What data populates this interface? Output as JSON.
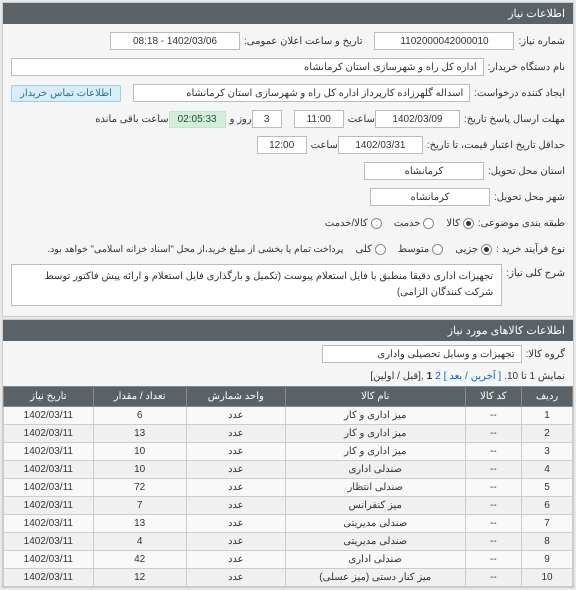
{
  "panel1": {
    "title": "اطلاعات نیاز",
    "need_no_lbl": "شماره نیاز:",
    "need_no": "1102000042000010",
    "pub_time_lbl": "تاریخ و ساعت اعلان عمومی:",
    "pub_time": "1402/03/06 - 08:18",
    "buyer_org_lbl": "نام دستگاه خریدار:",
    "buyer_org": "اداره کل راه و شهرسازی استان کرمانشاه",
    "requester_lbl": "ایجاد کننده درخواست:",
    "requester": "اسداله گلهرزاده کارپرداز اداره کل راه و شهرسازی استان کرمانشاه",
    "contact_btn": "اطلاعات تماس خریدار",
    "deadline_lbl": "مهلت ارسال پاسخ تاریخ:",
    "deadline_date": "1402/03/09",
    "time_lbl": "ساعت",
    "deadline_time": "11:00",
    "days_lbl": "روز و",
    "days": "3",
    "countdown": "02:05:33",
    "remain_lbl": "ساعت باقی مانده",
    "credit_lbl": "حداقل تاریخ اعتبار قیمت، تا تاریخ:",
    "credit_date": "1402/03/31",
    "credit_time": "12:00",
    "province_lbl": "استان محل تحویل:",
    "province": "کرمانشاه",
    "city_lbl": "شهر محل تحویل:",
    "city": "کرمانشاه",
    "subject_lbl": "طبقه بندی موضوعی:",
    "r1_lbl": "کالا",
    "r2_lbl": "خدمت",
    "r3_lbl": "کالا/خدمت",
    "purchase_lbl": "نوع فرآیند خرید :",
    "p1_lbl": "جزیی",
    "p2_lbl": "متوسط",
    "p3_lbl": "کلی",
    "note": "پرداخت تمام یا بخشی از مبلغ خرید،از محل \"اسناد خزانه اسلامی\" خواهد بود.",
    "desc_lbl": "شرح کلی نیاز:",
    "desc": "تجهیزات اداری دقیقا منطبق با فایل استعلام پیوست (تکمیل و بارگذاری فایل استعلام و ارائه پیش فاکتور توسط شرکت کنندگان الزامی)"
  },
  "panel2": {
    "title": "اطلاعات کالاهای مورد نیاز",
    "group_lbl": "گروه کالا:",
    "group": "تجهیزات و وسایل تحصیلی واداری",
    "pager_pre": "نمایش 1 تا 10.",
    "pager_last": "[ آخرین",
    "pager_next": "/ بعد ]",
    "pager_cur": "1",
    "pager_two": "2",
    "pager_first": ",[قبل / اولین]",
    "cols": [
      "ردیف",
      "کد کالا",
      "نام کالا",
      "واحد شمارش",
      "تعداد / مقدار",
      "تاریخ نیاز"
    ],
    "rows": [
      [
        "1",
        "--",
        "میز اداری و کار",
        "عدد",
        "6",
        "1402/03/11"
      ],
      [
        "2",
        "--",
        "میز اداری و کار",
        "عدد",
        "13",
        "1402/03/11"
      ],
      [
        "3",
        "--",
        "میز اداری و کار",
        "عدد",
        "10",
        "1402/03/11"
      ],
      [
        "4",
        "--",
        "صندلی اداری",
        "عدد",
        "10",
        "1402/03/11"
      ],
      [
        "5",
        "--",
        "صندلی انتظار",
        "عدد",
        "72",
        "1402/03/11"
      ],
      [
        "6",
        "--",
        "میز کنفرانس",
        "عدد",
        "7",
        "1402/03/11"
      ],
      [
        "7",
        "--",
        "صندلی مدیریتی",
        "عدد",
        "13",
        "1402/03/11"
      ],
      [
        "8",
        "--",
        "صندلی مدیریتی",
        "عدد",
        "4",
        "1402/03/11"
      ],
      [
        "9",
        "--",
        "صندلی اداری",
        "عدد",
        "42",
        "1402/03/11"
      ],
      [
        "10",
        "--",
        "میز کنار دستی (میز عسلی)",
        "عدد",
        "12",
        "1402/03/11"
      ]
    ]
  }
}
